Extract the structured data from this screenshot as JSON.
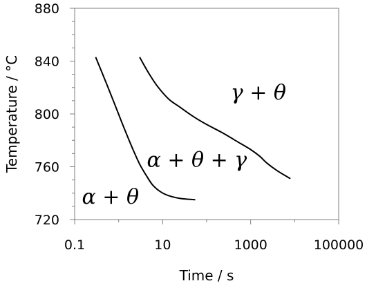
{
  "chart_data": {
    "type": "line",
    "xlabel": "Time / s",
    "ylabel": "Temperature / °C",
    "xscale": "log",
    "xlim": [
      0.1,
      100000
    ],
    "ylim": [
      720,
      880
    ],
    "x_ticks": [
      {
        "value": 0.1,
        "label": "0.1"
      },
      {
        "value": 10,
        "label": "10"
      },
      {
        "value": 1000,
        "label": "1000"
      },
      {
        "value": 100000,
        "label": "100000"
      }
    ],
    "y_ticks": [
      {
        "value": 720,
        "label": "720"
      },
      {
        "value": 760,
        "label": "760"
      },
      {
        "value": 800,
        "label": "800"
      },
      {
        "value": 840,
        "label": "840"
      },
      {
        "value": 880,
        "label": "880"
      }
    ],
    "series": [
      {
        "x": [
          0.3,
          0.5,
          0.8,
          1.2,
          2,
          3,
          4.5,
          6,
          9,
          14,
          25,
          55
        ],
        "y": [
          843,
          825,
          808,
          793,
          775,
          762,
          752,
          746,
          741,
          738,
          736,
          735
        ]
      },
      {
        "x": [
          3,
          5,
          8,
          14,
          25,
          50,
          100,
          220,
          500,
          1000,
          1600,
          2300,
          4000,
          8000
        ],
        "y": [
          843,
          830,
          820,
          811,
          805,
          798,
          792,
          786,
          779,
          773,
          768,
          763,
          757,
          751
        ]
      }
    ],
    "annotations": [
      {
        "text": "γ + θ",
        "x": 1500,
        "y": 811
      },
      {
        "text": "α + θ + γ",
        "x": 60,
        "y": 760
      },
      {
        "text": "α + θ",
        "x": 0.65,
        "y": 732
      }
    ],
    "grid": false,
    "legend": "none"
  }
}
